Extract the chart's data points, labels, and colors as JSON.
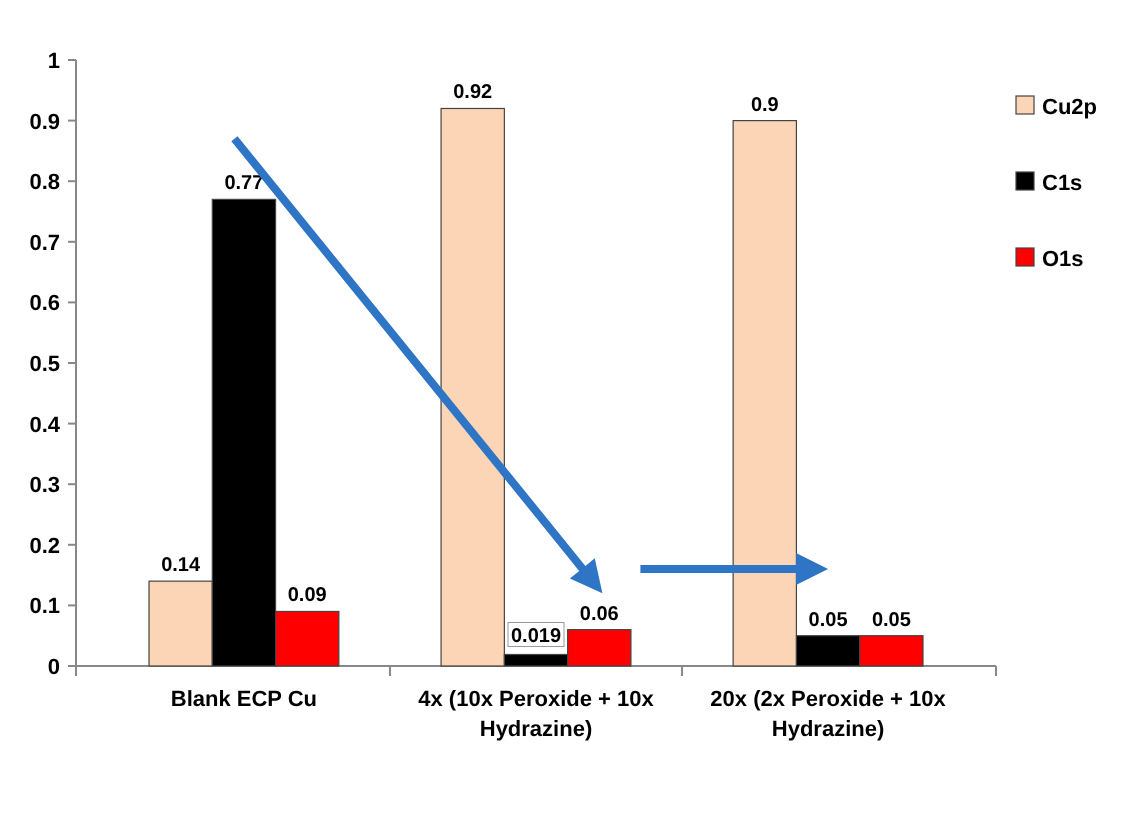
{
  "chart_data": {
    "type": "bar",
    "categories": [
      "Blank ECP Cu",
      "4x (10x Peroxide + 10x Hydrazine)",
      "20x (2x Peroxide + 10x Hydrazine)"
    ],
    "series": [
      {
        "name": "Cu2p",
        "color": "#fbd5b5",
        "values": [
          0.14,
          0.92,
          0.9
        ]
      },
      {
        "name": "C1s",
        "color": "#000000",
        "values": [
          0.77,
          0.019,
          0.05
        ]
      },
      {
        "name": "O1s",
        "color": "#ff0000",
        "values": [
          0.09,
          0.06,
          0.05
        ]
      }
    ],
    "ylim": [
      0,
      1
    ],
    "yticks": [
      0,
      0.1,
      0.2,
      0.3,
      0.4,
      0.5,
      0.6,
      0.7,
      0.8,
      0.9,
      1
    ],
    "data_labels": true,
    "legend": "right",
    "grid": false
  }
}
